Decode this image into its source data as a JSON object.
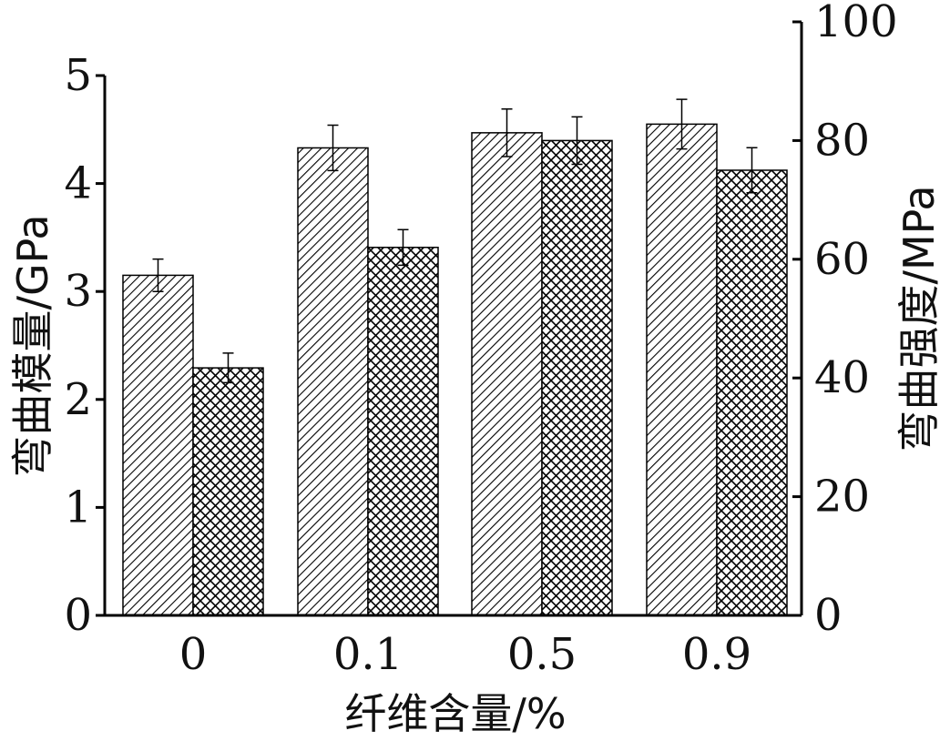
{
  "chart_data": {
    "type": "bar",
    "categories": [
      "0",
      "0.1",
      "0.5",
      "0.9"
    ],
    "xlabel": "纤维含量/%",
    "ylabel_left": "弯曲模量/GPa",
    "ylabel_right": "弯曲强度/MPa",
    "ylim_left": [
      0,
      5
    ],
    "ylim_right": [
      0,
      100
    ],
    "yticks_left": [
      "0",
      "1",
      "2",
      "3",
      "4",
      "5"
    ],
    "yticks_right": [
      "0",
      "20",
      "40",
      "60",
      "80",
      "100"
    ],
    "grid": false,
    "series": [
      {
        "axis": "left",
        "pattern": "diagonal-hatch",
        "values": [
          3.15,
          4.33,
          4.47,
          4.55
        ],
        "errors": [
          0.15,
          0.21,
          0.22,
          0.23
        ]
      },
      {
        "axis": "right",
        "pattern": "cross-hatch",
        "values": [
          41.7,
          62.0,
          80.0,
          75.0
        ],
        "errors": [
          2.5,
          3.0,
          4.0,
          3.8
        ]
      }
    ]
  }
}
